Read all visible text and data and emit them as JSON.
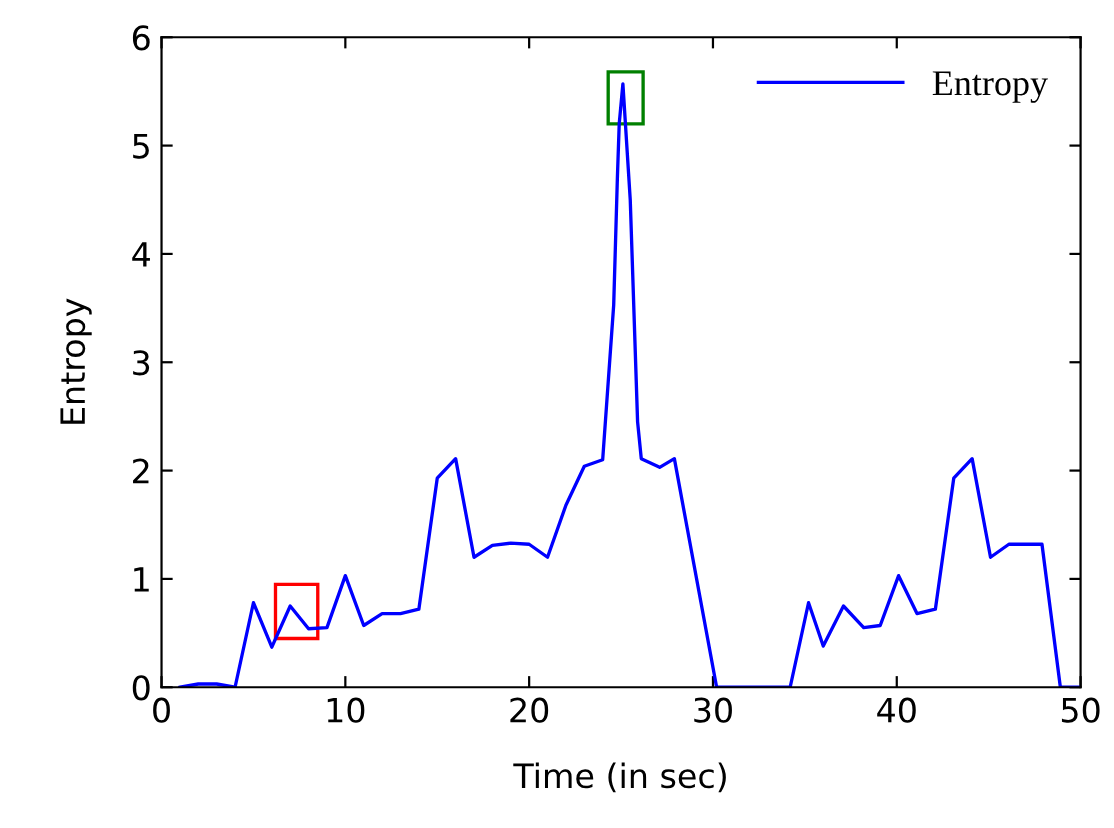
{
  "chart_data": {
    "type": "line",
    "xlabel": "Time (in sec)",
    "ylabel": "Entropy",
    "xlim": [
      0,
      50
    ],
    "ylim": [
      0,
      6
    ],
    "xticks": [
      0,
      10,
      20,
      30,
      40,
      50
    ],
    "yticks": [
      0,
      1,
      2,
      3,
      4,
      5,
      6
    ],
    "grid": false,
    "legend": "top right",
    "marker": "none",
    "line_style": "solid",
    "series": [
      {
        "name": "Entropy",
        "color": "#0000ff",
        "x": [
          1,
          2,
          3,
          4,
          5,
          6,
          7,
          8,
          9,
          10,
          11,
          12,
          13,
          14,
          15,
          16,
          17,
          18,
          19,
          20,
          21,
          22,
          23,
          24,
          24.6,
          24.8,
          24.9,
          25.1,
          25.5,
          25.9,
          26.1,
          27.1,
          27.9,
          30.2,
          34.2,
          35.2,
          36,
          37.1,
          38.2,
          39.1,
          40.1,
          41.1,
          42.1,
          43.1,
          44.1,
          45.1,
          46.1,
          47.9,
          48.9,
          50
        ],
        "values": [
          0,
          0.03,
          0.03,
          0,
          0.78,
          0.37,
          0.75,
          0.54,
          0.55,
          1.03,
          0.57,
          0.68,
          0.68,
          0.72,
          1.93,
          2.11,
          1.2,
          1.31,
          1.33,
          1.32,
          1.2,
          1.68,
          2.04,
          2.1,
          3.53,
          4.7,
          5.2,
          5.57,
          4.5,
          2.45,
          2.11,
          2.03,
          2.11,
          0,
          0,
          0.78,
          0.38,
          0.75,
          0.55,
          0.57,
          1.03,
          0.68,
          0.72,
          1.93,
          2.11,
          1.2,
          1.32,
          1.32,
          0,
          0
        ]
      }
    ]
  }
}
